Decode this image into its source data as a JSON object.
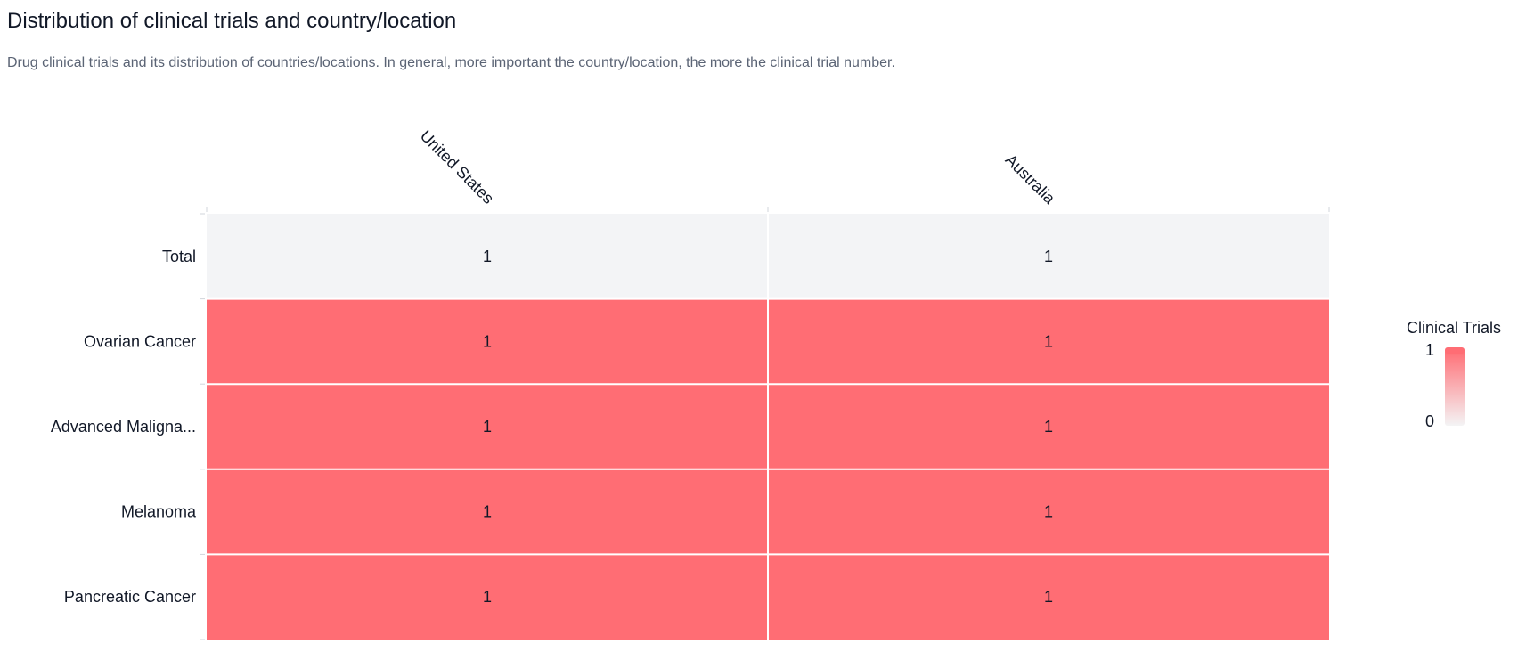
{
  "header": {
    "title": "Distribution of clinical trials and country/location",
    "subtitle": "Drug clinical trials and its distribution of countries/locations. In general, more important the country/location, the more the clinical trial number."
  },
  "chart_data": {
    "type": "heatmap",
    "x_categories": [
      "United States",
      "Australia"
    ],
    "y_categories": [
      "Total",
      "Ovarian Cancer",
      "Advanced Maligna...",
      "Melanoma",
      "Pancreatic Cancer"
    ],
    "values": [
      [
        1,
        1
      ],
      [
        1,
        1
      ],
      [
        1,
        1
      ],
      [
        1,
        1
      ],
      [
        1,
        1
      ]
    ],
    "total_row_color": "#f3f4f6",
    "colorscale": {
      "title": "Clinical Trials",
      "min": 0,
      "max": 1,
      "min_color": "#f4f4f5",
      "max_color": "#ff6d74",
      "tick_labels": [
        "1",
        "0"
      ]
    }
  }
}
